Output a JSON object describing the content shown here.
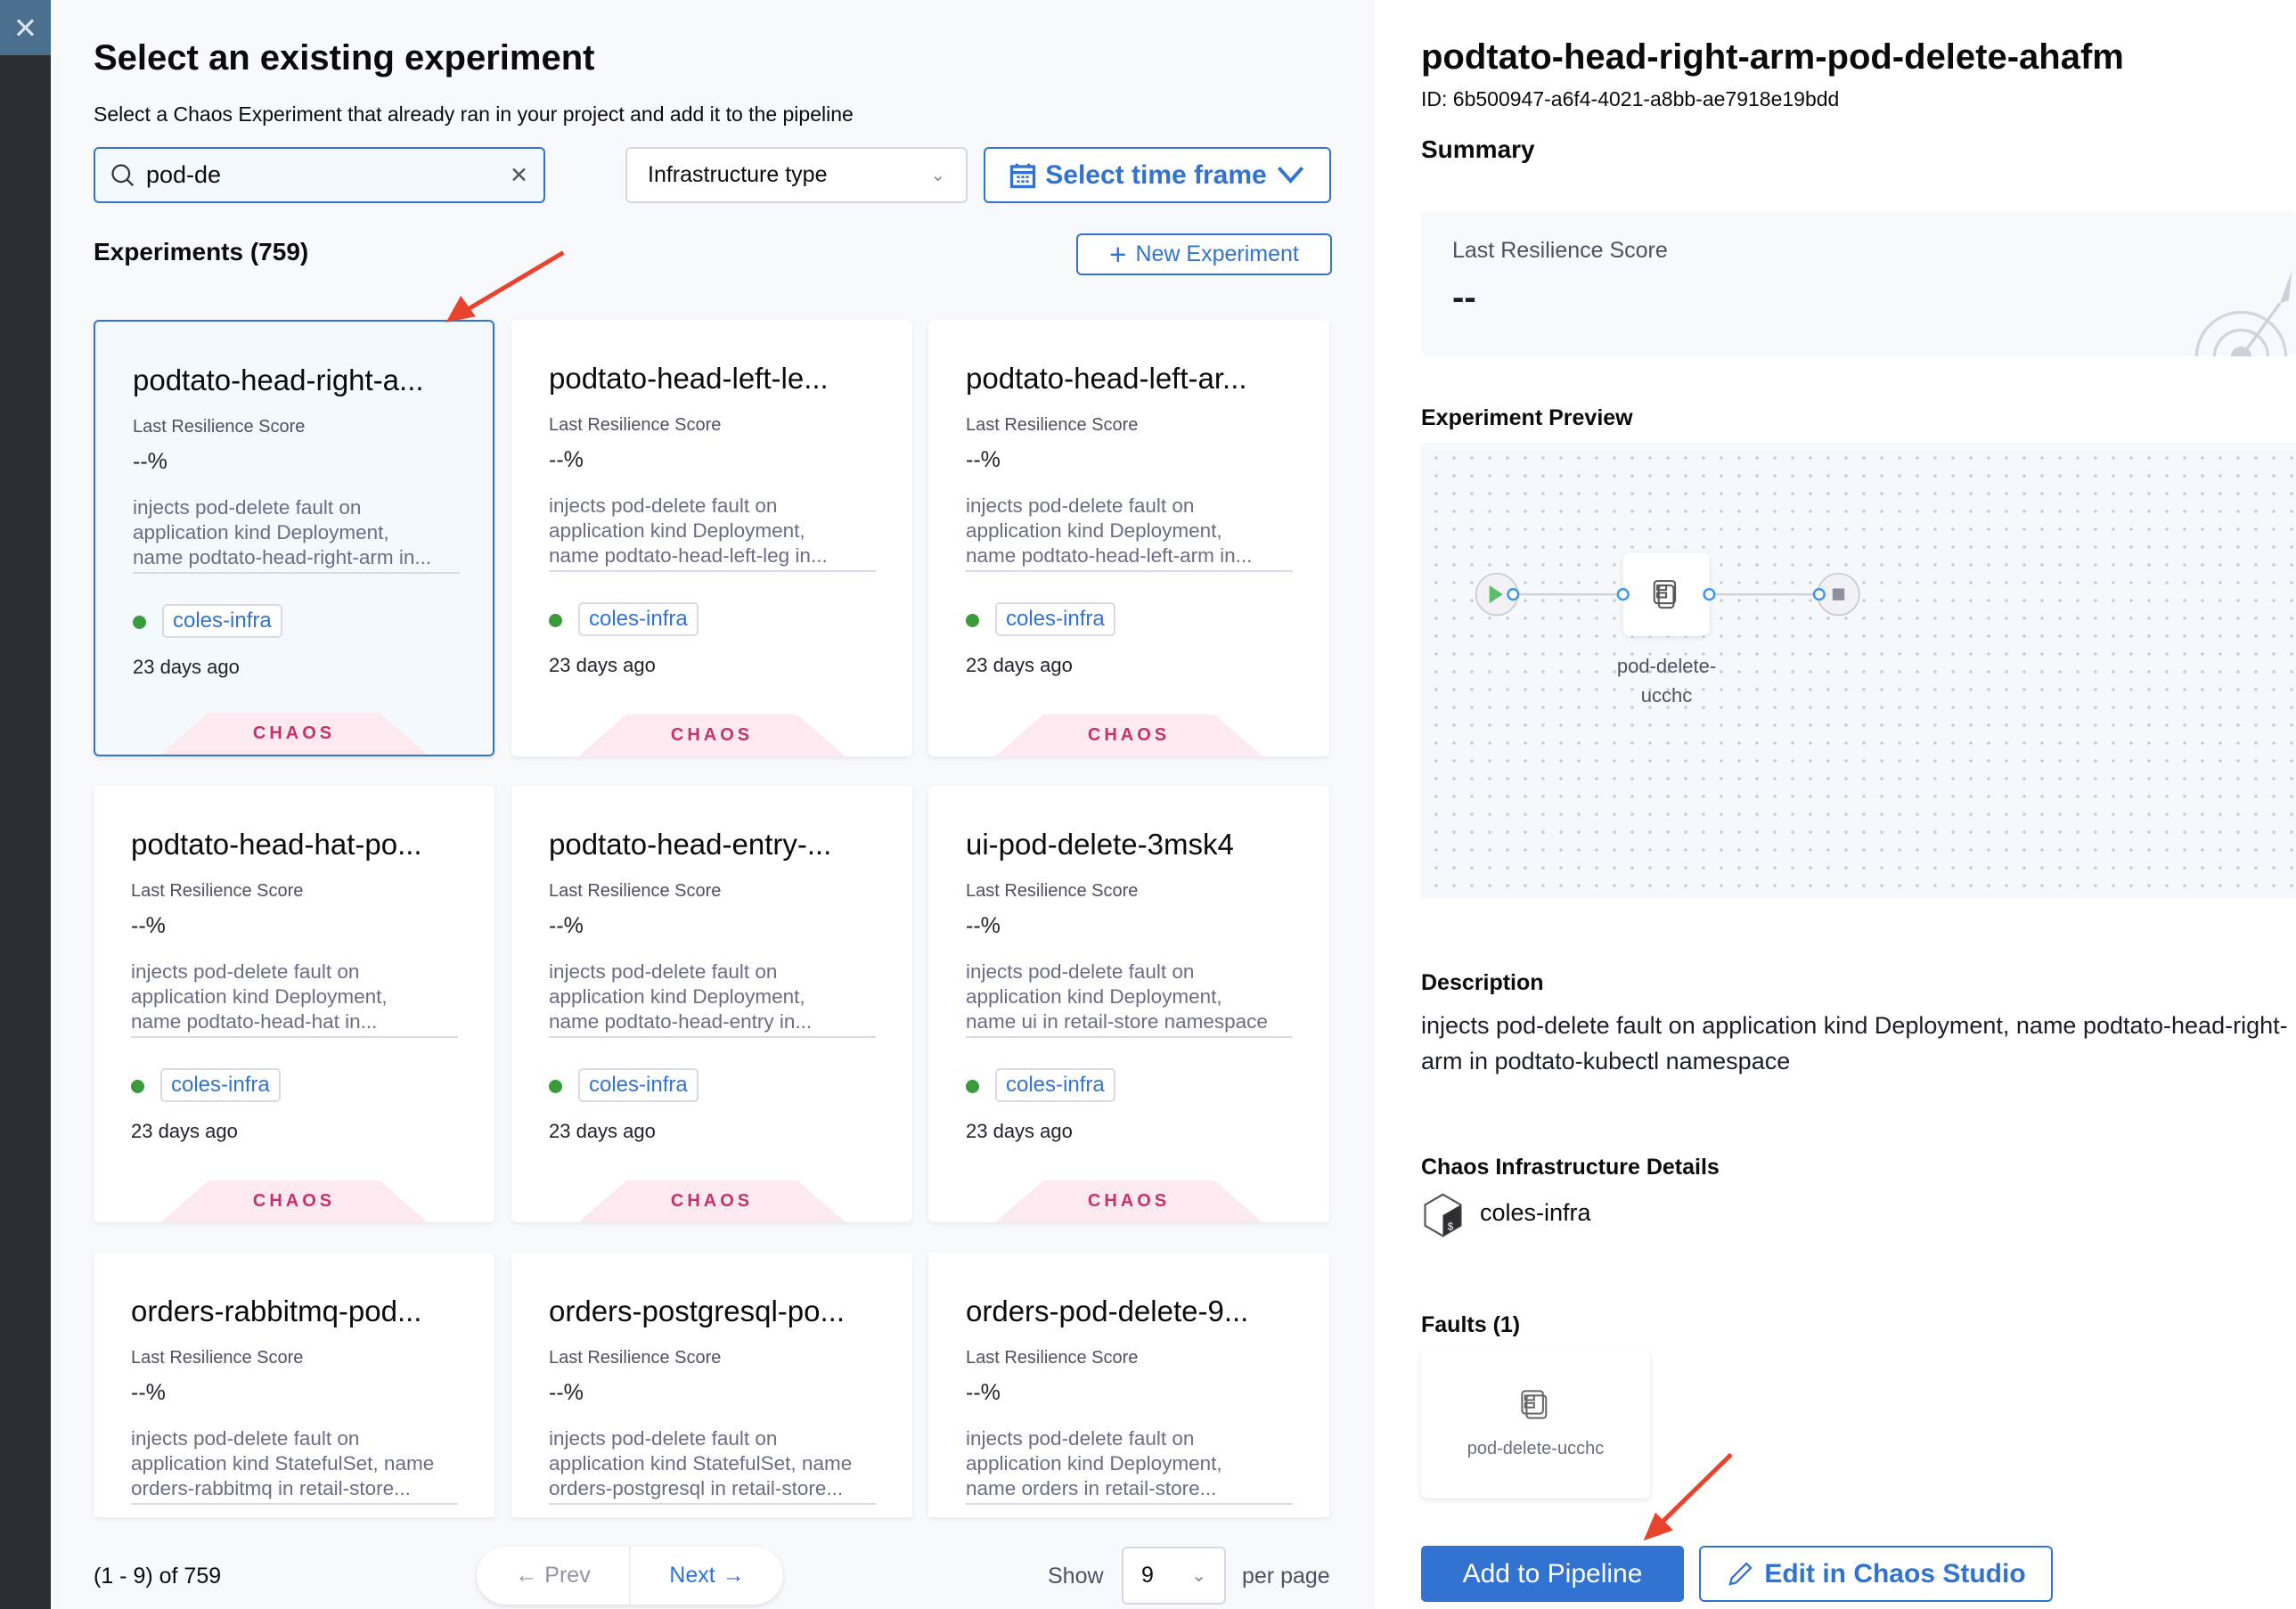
{
  "colors": {
    "accent": "#3273d2",
    "chaos_tag": "#c4316c",
    "status_green": "#3b9a3b",
    "annotation_arrow": "#e8432c"
  },
  "close_icon": "close-icon",
  "left": {
    "title": "Select an existing experiment",
    "subtitle": "Select a Chaos Experiment that already ran in your project and add it to the pipeline",
    "search": {
      "value": "pod-de",
      "placeholder": "Search"
    },
    "infra_filter": "Infrastructure type",
    "time_frame": "Select time frame",
    "experiments_heading": "Experiments (759)",
    "new_experiment": "New Experiment",
    "cards": [
      {
        "title": "podtato-head-right-a...",
        "score_label": "Last Resilience Score",
        "score": "--%",
        "desc": [
          "injects pod-delete fault on",
          "application kind Deployment,",
          "name podtato-head-right-arm in..."
        ],
        "infra": "coles-infra",
        "ago": "23 days ago",
        "module": "CHAOS",
        "selected": true
      },
      {
        "title": "podtato-head-left-le...",
        "score_label": "Last Resilience Score",
        "score": "--%",
        "desc": [
          "injects pod-delete fault on",
          "application kind Deployment,",
          "name podtato-head-left-leg in..."
        ],
        "infra": "coles-infra",
        "ago": "23 days ago",
        "module": "CHAOS"
      },
      {
        "title": "podtato-head-left-ar...",
        "score_label": "Last Resilience Score",
        "score": "--%",
        "desc": [
          "injects pod-delete fault on",
          "application kind Deployment,",
          "name podtato-head-left-arm in..."
        ],
        "infra": "coles-infra",
        "ago": "23 days ago",
        "module": "CHAOS"
      },
      {
        "title": "podtato-head-hat-po...",
        "score_label": "Last Resilience Score",
        "score": "--%",
        "desc": [
          "injects pod-delete fault on",
          "application kind Deployment,",
          "name podtato-head-hat in..."
        ],
        "infra": "coles-infra",
        "ago": "23 days ago",
        "module": "CHAOS"
      },
      {
        "title": "podtato-head-entry-...",
        "score_label": "Last Resilience Score",
        "score": "--%",
        "desc": [
          "injects pod-delete fault on",
          "application kind Deployment,",
          "name podtato-head-entry in..."
        ],
        "infra": "coles-infra",
        "ago": "23 days ago",
        "module": "CHAOS"
      },
      {
        "title": "ui-pod-delete-3msk4",
        "score_label": "Last Resilience Score",
        "score": "--%",
        "desc": [
          "injects pod-delete fault on",
          "application kind Deployment,",
          "name ui in retail-store namespace"
        ],
        "infra": "coles-infra",
        "ago": "23 days ago",
        "module": "CHAOS"
      },
      {
        "title": "orders-rabbitmq-pod...",
        "score_label": "Last Resilience Score",
        "score": "--%",
        "desc": [
          "injects pod-delete fault on",
          "application kind StatefulSet, name",
          "orders-rabbitmq in retail-store..."
        ]
      },
      {
        "title": "orders-postgresql-po...",
        "score_label": "Last Resilience Score",
        "score": "--%",
        "desc": [
          "injects pod-delete fault on",
          "application kind StatefulSet, name",
          "orders-postgresql in retail-store..."
        ]
      },
      {
        "title": "orders-pod-delete-9...",
        "score_label": "Last Resilience Score",
        "score": "--%",
        "desc": [
          "injects pod-delete fault on",
          "application kind Deployment,",
          "name orders in retail-store..."
        ]
      }
    ],
    "pagination": {
      "info": "(1 - 9) of 759",
      "prev": "Prev",
      "next": "Next",
      "show": "Show",
      "per_page_value": "9",
      "per_page": "per page"
    }
  },
  "right": {
    "title": "podtato-head-right-arm-pod-delete-ahafm",
    "id": "ID: 6b500947-a6f4-4021-a8bb-ae7918e19bdd",
    "summary": "Summary",
    "score_label": "Last Resilience Score",
    "score": "--",
    "preview_heading": "Experiment Preview",
    "preview_node": [
      "pod-delete-",
      "ucchc"
    ],
    "description_heading": "Description",
    "description": "injects pod-delete fault on application kind Deployment, name podtato-head-right-arm in podtato-kubectl namespace",
    "infra_heading": "Chaos Infrastructure Details",
    "infra_name": "coles-infra",
    "faults_heading": "Faults (1)",
    "fault_name": "pod-delete-ucchc",
    "add_button": "Add to Pipeline",
    "edit_button": "Edit in Chaos Studio"
  }
}
